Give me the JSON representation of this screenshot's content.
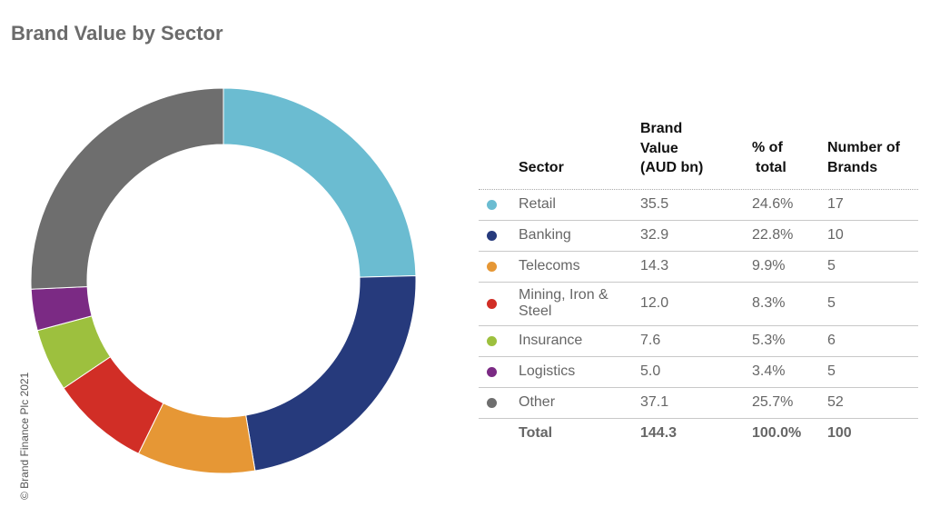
{
  "title": "Brand Value by Sector",
  "copyright": "© Brand Finance Plc 2021",
  "chart_data": {
    "type": "pie",
    "donut": true,
    "categories": [
      "Retail",
      "Banking",
      "Telecoms",
      "Mining, Iron & Steel",
      "Insurance",
      "Logistics",
      "Other"
    ],
    "values": [
      35.5,
      32.9,
      14.3,
      12.0,
      7.6,
      5.0,
      37.1
    ],
    "colors": [
      "#6bbcd1",
      "#263a7c",
      "#e69735",
      "#d12e26",
      "#9dc03e",
      "#7b2a84",
      "#6e6e6e"
    ],
    "start": "top",
    "direction": "clockwise"
  },
  "table": {
    "headers": {
      "sector": "Sector",
      "value": [
        "Brand",
        "Value",
        "(AUD bn)"
      ],
      "pct": [
        "% of",
        "total"
      ],
      "num": [
        "Number of",
        "Brands"
      ]
    },
    "rows": [
      {
        "sector": "Retail",
        "value": "35.5",
        "pct": "24.6%",
        "num": "17"
      },
      {
        "sector": "Banking",
        "value": "32.9",
        "pct": "22.8%",
        "num": "10"
      },
      {
        "sector": "Telecoms",
        "value": "14.3",
        "pct": "9.9%",
        "num": "5"
      },
      {
        "sector": "Mining, Iron & Steel",
        "value": "12.0",
        "pct": "8.3%",
        "num": "5"
      },
      {
        "sector": "Insurance",
        "value": "7.6",
        "pct": "5.3%",
        "num": "6"
      },
      {
        "sector": "Logistics",
        "value": "5.0",
        "pct": "3.4%",
        "num": "5"
      },
      {
        "sector": "Other",
        "value": "37.1",
        "pct": "25.7%",
        "num": "52"
      }
    ],
    "total": {
      "sector": "Total",
      "value": "144.3",
      "pct": "100.0%",
      "num": "100"
    }
  }
}
